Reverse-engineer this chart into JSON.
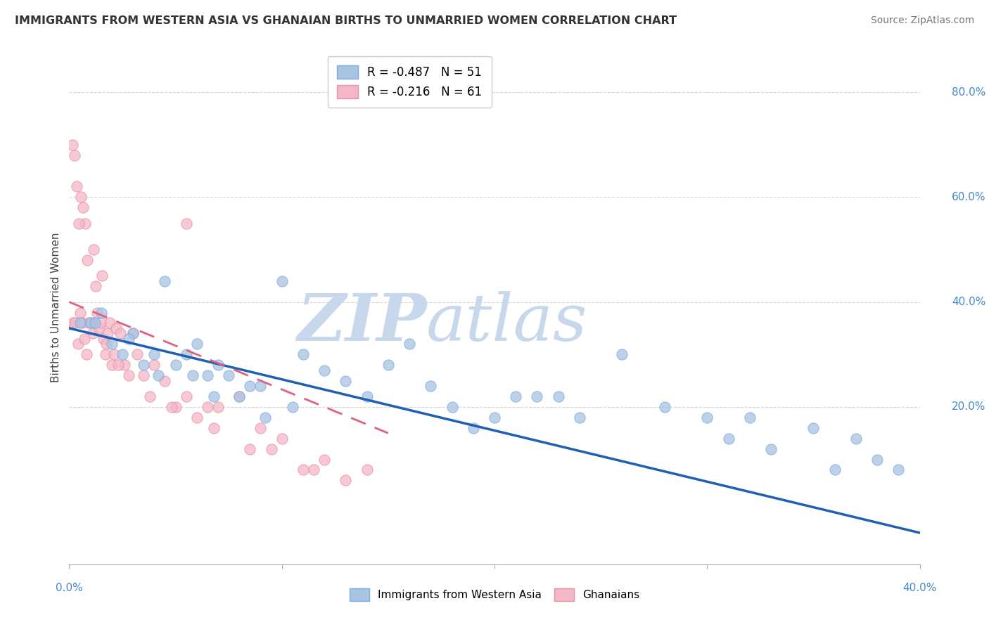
{
  "title": "IMMIGRANTS FROM WESTERN ASIA VS GHANAIAN BIRTHS TO UNMARRIED WOMEN CORRELATION CHART",
  "source": "Source: ZipAtlas.com",
  "legend_blue_label": "Immigrants from Western Asia",
  "legend_pink_label": "Ghanaians",
  "legend_blue_r": "R = -0.487",
  "legend_blue_n": "N = 51",
  "legend_pink_r": "R = -0.216",
  "legend_pink_n": "N = 61",
  "blue_dot_color": "#a8c4e0",
  "pink_dot_color": "#f4b8c8",
  "blue_dot_edge": "#7aabe8",
  "pink_dot_edge": "#e890a8",
  "blue_line_color": "#2060b0",
  "pink_line_color": "#e06080",
  "watermark_zip_color": "#c8d8ec",
  "watermark_atlas_color": "#c8d8ec",
  "background_color": "#ffffff",
  "grid_color": "#cccccc",
  "title_color": "#333333",
  "axis_label_color": "#4488cc",
  "ylabel_label": "Births to Unmarried Women",
  "xlim": [
    0.0,
    40.0
  ],
  "ylim": [
    -10.0,
    88.0
  ],
  "blue_line_x0": 0.0,
  "blue_line_y0": 35.0,
  "blue_line_x1": 40.0,
  "blue_line_y1": -4.0,
  "pink_line_x0": 0.0,
  "pink_line_y0": 40.0,
  "pink_line_x1": 15.0,
  "pink_line_y1": 15.0,
  "blue_scatter_x": [
    1.0,
    1.5,
    2.0,
    2.5,
    3.0,
    3.5,
    4.0,
    4.5,
    5.0,
    5.5,
    6.0,
    6.5,
    7.0,
    7.5,
    8.0,
    9.0,
    10.0,
    11.0,
    12.0,
    13.0,
    14.0,
    15.0,
    16.0,
    17.0,
    18.0,
    19.0,
    20.0,
    21.0,
    22.0,
    24.0,
    26.0,
    28.0,
    30.0,
    32.0,
    35.0,
    37.0,
    38.0,
    39.0,
    2.8,
    4.2,
    5.8,
    8.5,
    10.5,
    23.0,
    31.0,
    0.5,
    1.2,
    6.8,
    9.2,
    36.0,
    33.0
  ],
  "blue_scatter_y": [
    36.0,
    38.0,
    32.0,
    30.0,
    34.0,
    28.0,
    30.0,
    44.0,
    28.0,
    30.0,
    32.0,
    26.0,
    28.0,
    26.0,
    22.0,
    24.0,
    44.0,
    30.0,
    27.0,
    25.0,
    22.0,
    28.0,
    32.0,
    24.0,
    20.0,
    16.0,
    18.0,
    22.0,
    22.0,
    18.0,
    30.0,
    20.0,
    18.0,
    18.0,
    16.0,
    14.0,
    10.0,
    8.0,
    33.0,
    26.0,
    26.0,
    24.0,
    20.0,
    22.0,
    14.0,
    36.0,
    36.0,
    22.0,
    18.0,
    8.0,
    12.0
  ],
  "pink_scatter_x": [
    0.2,
    0.3,
    0.4,
    0.5,
    0.6,
    0.7,
    0.8,
    0.9,
    1.0,
    1.1,
    1.2,
    1.3,
    1.4,
    1.5,
    1.6,
    1.7,
    1.8,
    1.9,
    2.0,
    2.1,
    2.2,
    2.4,
    2.6,
    2.8,
    3.0,
    3.2,
    3.5,
    4.0,
    4.5,
    5.0,
    5.5,
    6.0,
    6.5,
    7.0,
    8.0,
    9.0,
    10.0,
    11.0,
    12.0,
    13.0,
    14.0,
    0.15,
    0.25,
    0.35,
    0.55,
    0.75,
    1.15,
    1.55,
    2.3,
    3.8,
    4.8,
    6.8,
    8.5,
    0.45,
    0.65,
    0.85,
    1.25,
    1.75,
    5.5,
    9.5,
    11.5
  ],
  "pink_scatter_y": [
    36.0,
    36.0,
    32.0,
    38.0,
    36.0,
    33.0,
    30.0,
    36.0,
    36.0,
    34.0,
    36.0,
    38.0,
    35.0,
    36.0,
    33.0,
    30.0,
    34.0,
    36.0,
    28.0,
    30.0,
    35.0,
    34.0,
    28.0,
    26.0,
    34.0,
    30.0,
    26.0,
    28.0,
    25.0,
    20.0,
    22.0,
    18.0,
    20.0,
    20.0,
    22.0,
    16.0,
    14.0,
    8.0,
    10.0,
    6.0,
    8.0,
    70.0,
    68.0,
    62.0,
    60.0,
    55.0,
    50.0,
    45.0,
    28.0,
    22.0,
    20.0,
    16.0,
    12.0,
    55.0,
    58.0,
    48.0,
    43.0,
    32.0,
    55.0,
    12.0,
    8.0
  ]
}
